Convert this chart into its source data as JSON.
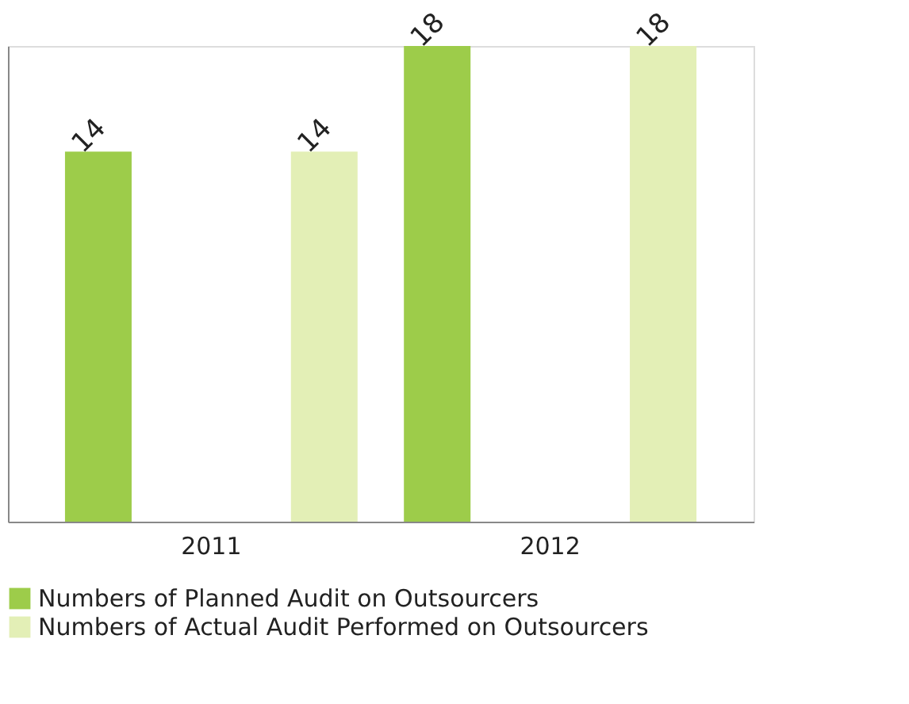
{
  "chart_data": {
    "type": "bar",
    "categories": [
      "2011",
      "2012"
    ],
    "series": [
      {
        "name": "Numbers of Planned Audit on Outsourcers",
        "color": "#9dcc4a",
        "values": [
          14,
          18
        ]
      },
      {
        "name": "Numbers of Actual Audit Performed on Outsourcers",
        "color": "#e3efb6",
        "values": [
          14,
          18
        ]
      }
    ],
    "data_labels": true,
    "legend": "bottom",
    "grid": false,
    "tick_labels": "x"
  }
}
